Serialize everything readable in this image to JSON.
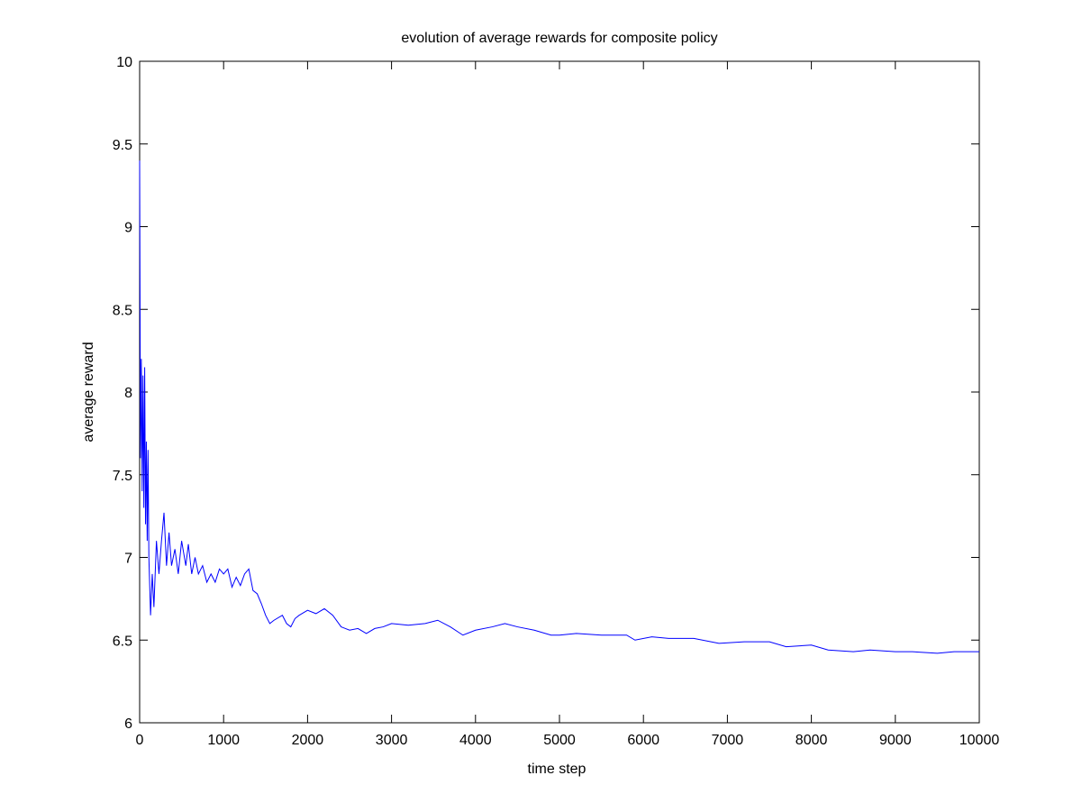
{
  "chart_data": {
    "type": "line",
    "title": "evolution of average rewards for composite policy",
    "x_label": "time step",
    "y_label": "average reward",
    "xlim": [
      0,
      10000
    ],
    "ylim": [
      6,
      10
    ],
    "xticks": [
      0,
      1000,
      2000,
      3000,
      4000,
      5000,
      6000,
      7000,
      8000,
      9000,
      10000
    ],
    "yticks": [
      6,
      6.5,
      7,
      7.5,
      8,
      8.5,
      9,
      9.5,
      10
    ],
    "grid": false,
    "x": [
      0,
      10,
      20,
      30,
      40,
      50,
      60,
      70,
      80,
      90,
      100,
      110,
      130,
      150,
      170,
      200,
      230,
      260,
      290,
      320,
      350,
      380,
      420,
      460,
      500,
      550,
      580,
      620,
      660,
      700,
      750,
      800,
      850,
      900,
      950,
      1000,
      1050,
      1100,
      1150,
      1200,
      1250,
      1300,
      1350,
      1400,
      1450,
      1500,
      1550,
      1600,
      1700,
      1750,
      1800,
      1850,
      1900,
      2000,
      2100,
      2200,
      2300,
      2400,
      2500,
      2600,
      2700,
      2800,
      2900,
      3000,
      3200,
      3400,
      3550,
      3700,
      3850,
      4000,
      4200,
      4350,
      4500,
      4700,
      4900,
      5000,
      5200,
      5500,
      5800,
      5900,
      6100,
      6300,
      6600,
      6900,
      7200,
      7500,
      7700,
      8000,
      8200,
      8500,
      8700,
      9000,
      9200,
      9500,
      9700,
      10000
    ],
    "series": [
      {
        "name": "average reward",
        "color": "#0000ff",
        "values": [
          9.4,
          7.6,
          8.2,
          7.4,
          8.1,
          7.3,
          8.15,
          7.2,
          7.7,
          7.1,
          7.65,
          7.0,
          6.65,
          6.9,
          6.7,
          7.1,
          6.9,
          7.1,
          7.27,
          6.95,
          7.15,
          6.95,
          7.05,
          6.9,
          7.1,
          6.95,
          7.08,
          6.9,
          7.0,
          6.9,
          6.95,
          6.85,
          6.9,
          6.85,
          6.93,
          6.9,
          6.93,
          6.82,
          6.88,
          6.83,
          6.9,
          6.93,
          6.8,
          6.78,
          6.72,
          6.65,
          6.6,
          6.62,
          6.65,
          6.6,
          6.58,
          6.63,
          6.65,
          6.68,
          6.66,
          6.69,
          6.65,
          6.58,
          6.56,
          6.57,
          6.54,
          6.57,
          6.58,
          6.6,
          6.59,
          6.6,
          6.62,
          6.58,
          6.53,
          6.56,
          6.58,
          6.6,
          6.58,
          6.56,
          6.53,
          6.53,
          6.54,
          6.53,
          6.53,
          6.5,
          6.52,
          6.51,
          6.51,
          6.48,
          6.49,
          6.49,
          6.46,
          6.47,
          6.44,
          6.43,
          6.44,
          6.43,
          6.43,
          6.42,
          6.43,
          6.43
        ]
      }
    ]
  }
}
